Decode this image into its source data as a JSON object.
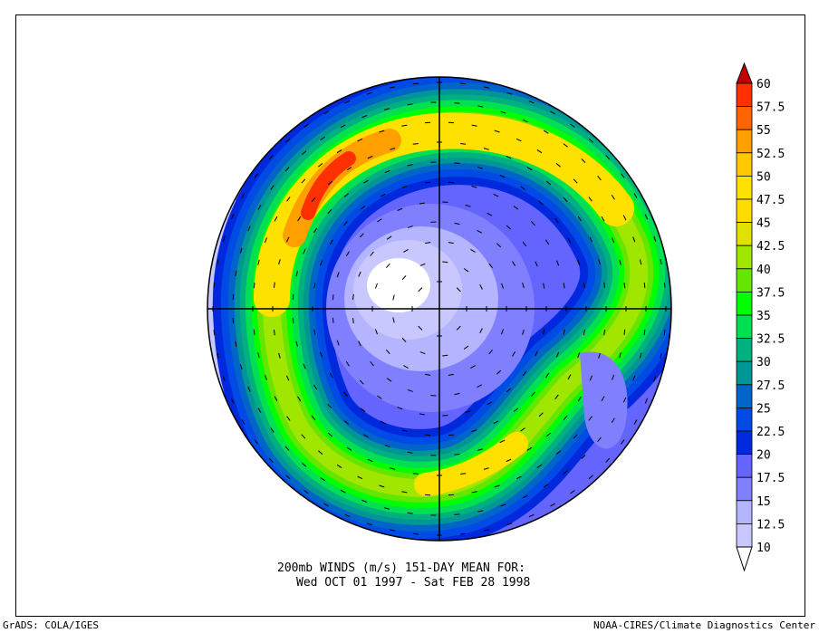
{
  "title": {
    "line1": "200mb WINDS (m/s)   151-DAY MEAN FOR:",
    "line2": "Wed OCT 01 1997 - Sat FEB 28 1998"
  },
  "footer": {
    "left": "GrADS: COLA/IGES",
    "right": "NOAA-CIRES/Climate Diagnostics Center"
  },
  "colorbar": {
    "units": "m/s",
    "labels": [
      "60",
      "57.5",
      "55",
      "52.5",
      "50",
      "47.5",
      "45",
      "42.5",
      "40",
      "37.5",
      "35",
      "32.5",
      "30",
      "27.5",
      "25",
      "22.5",
      "20",
      "17.5",
      "15",
      "12.5",
      "10"
    ],
    "colors_top_to_bottom": [
      "#ff3000",
      "#ff6400",
      "#ffa000",
      "#ffc800",
      "#ffe100",
      "#ffdc00",
      "#e1e100",
      "#a0e600",
      "#64e600",
      "#00ff00",
      "#00e050",
      "#00b080",
      "#009696",
      "#0064c8",
      "#004be6",
      "#0028dc",
      "#6464ff",
      "#8080ff",
      "#b4b4ff",
      "#c8c8ff"
    ],
    "over_color": "#c00000",
    "under_color": "#ffffff"
  }
}
